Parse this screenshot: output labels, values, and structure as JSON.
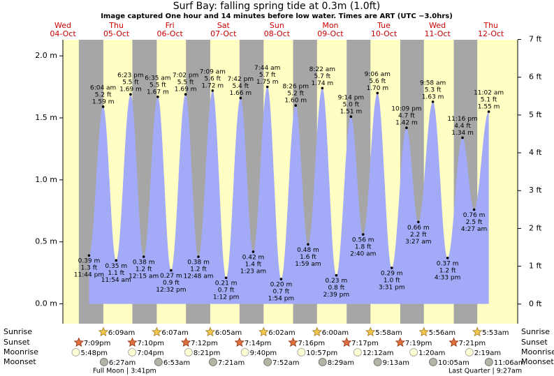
{
  "chart_data": {
    "type": "tide",
    "title": "Surf Bay: falling  spring tide at 0.3m (1.0ft)",
    "subtitle": "Image captured One hour and 14 minutes before low water. Times are ART (UTC −3.0hrs)",
    "ylim": [
      -0.16,
      2.13
    ],
    "yticks": [
      {
        "value": 0,
        "label": "0.0 m"
      },
      {
        "value": 0.5,
        "label": "0.5 m"
      },
      {
        "value": 1,
        "label": "1.0 m"
      },
      {
        "value": 1.5,
        "label": "1.5 m"
      },
      {
        "value": 2,
        "label": "2.0 m"
      }
    ],
    "y2lim": [
      -0.52,
      6.99
    ],
    "y2ticks": [
      {
        "value": 0,
        "label": "0 ft"
      },
      {
        "value": 1,
        "label": "1 ft"
      },
      {
        "value": 2,
        "label": "2 ft"
      },
      {
        "value": 3,
        "label": "3 ft"
      },
      {
        "value": 4,
        "label": "4 ft"
      },
      {
        "value": 5,
        "label": "5 ft"
      },
      {
        "value": 6,
        "label": "6 ft"
      },
      {
        "value": 7,
        "label": "7 ft"
      }
    ],
    "water_color": "#a3aaf7",
    "day_color": "#ffffc4",
    "night_color": "#a6a6a6",
    "row_labels": {
      "sunrise": "Sunrise",
      "sunset": "Sunset",
      "moonrise": "Moonrise",
      "moonset": "Moonset"
    },
    "days": [
      {
        "weekday": "Wed",
        "date": "04-Oct",
        "tides": [
          {
            "time": "11:44 pm",
            "height": 0.39,
            "height_label": "0.39 m",
            "feet": "1.3 ft"
          }
        ],
        "sunset": "7:09pm",
        "moonrise": "5:48pm"
      },
      {
        "weekday": "Thu",
        "date": "05-Oct",
        "tides": [
          {
            "time": "6:04 am",
            "height": 1.59,
            "height_label": "1.59 m",
            "feet": "5.2 ft"
          },
          {
            "time": "11:54 am",
            "height": 0.35,
            "height_label": "0.35 m",
            "feet": "1.1 ft"
          },
          {
            "time": "6:23 pm",
            "height": 1.69,
            "height_label": "1.69 m",
            "feet": "5.5 ft"
          }
        ],
        "sunrise": "6:09am",
        "sunset": "7:10pm",
        "moonrise": "7:04pm",
        "moonset": "6:27am",
        "moon_phase": "Full Moon | 3:41pm"
      },
      {
        "weekday": "Fri",
        "date": "06-Oct",
        "tides": [
          {
            "time": "12:15 am",
            "height": 0.38,
            "height_label": "0.38 m",
            "feet": "1.2 ft"
          },
          {
            "time": "6:35 am",
            "height": 1.67,
            "height_label": "1.67 m",
            "feet": "5.5 ft"
          },
          {
            "time": "12:32 pm",
            "height": 0.27,
            "height_label": "0.27 m",
            "feet": "0.9 ft"
          },
          {
            "time": "7:02 pm",
            "height": 1.69,
            "height_label": "1.69 m",
            "feet": "5.5 ft"
          }
        ],
        "sunrise": "6:07am",
        "sunset": "7:12pm",
        "moonrise": "8:21pm",
        "moonset": "6:53am"
      },
      {
        "weekday": "Sat",
        "date": "07-Oct",
        "tides": [
          {
            "time": "12:48 am",
            "height": 0.38,
            "height_label": "0.38 m",
            "feet": "1.2 ft"
          },
          {
            "time": "7:09 am",
            "height": 1.72,
            "height_label": "1.72 m",
            "feet": "5.6 ft"
          },
          {
            "time": "1:12 pm",
            "height": 0.21,
            "height_label": "0.21 m",
            "feet": "0.7 ft"
          },
          {
            "time": "7:42 pm",
            "height": 1.66,
            "height_label": "1.66 m",
            "feet": "5.4 ft"
          }
        ],
        "sunrise": "6:05am",
        "sunset": "7:14pm",
        "moonrise": "9:40pm",
        "moonset": "7:21am"
      },
      {
        "weekday": "Sun",
        "date": "08-Oct",
        "tides": [
          {
            "time": "1:23 am",
            "height": 0.42,
            "height_label": "0.42 m",
            "feet": "1.4 ft"
          },
          {
            "time": "7:44 am",
            "height": 1.75,
            "height_label": "1.75 m",
            "feet": "5.7 ft"
          },
          {
            "time": "1:54 pm",
            "height": 0.2,
            "height_label": "0.20 m",
            "feet": "0.7 ft"
          },
          {
            "time": "8:26 pm",
            "height": 1.6,
            "height_label": "1.60 m",
            "feet": "5.2 ft"
          }
        ],
        "sunrise": "6:02am",
        "sunset": "7:16pm",
        "moonrise": "10:57pm",
        "moonset": "7:52am"
      },
      {
        "weekday": "Mon",
        "date": "09-Oct",
        "tides": [
          {
            "time": "1:59 am",
            "height": 0.48,
            "height_label": "0.48 m",
            "feet": "1.6 ft"
          },
          {
            "time": "8:22 am",
            "height": 1.74,
            "height_label": "1.74 m",
            "feet": "5.7 ft"
          },
          {
            "time": "2:39 pm",
            "height": 0.23,
            "height_label": "0.23 m",
            "feet": "0.8 ft"
          },
          {
            "time": "9:14 pm",
            "height": 1.51,
            "height_label": "1.51 m",
            "feet": "5.0 ft"
          }
        ],
        "sunrise": "6:00am",
        "sunset": "7:17pm",
        "moonset": "8:29am"
      },
      {
        "weekday": "Tue",
        "date": "10-Oct",
        "tides": [
          {
            "time": "2:40 am",
            "height": 0.56,
            "height_label": "0.56 m",
            "feet": "1.8 ft"
          },
          {
            "time": "9:06 am",
            "height": 1.7,
            "height_label": "1.70 m",
            "feet": "5.6 ft"
          },
          {
            "time": "3:31 pm",
            "height": 0.29,
            "height_label": "0.29 m",
            "feet": "1.0 ft"
          },
          {
            "time": "10:09 pm",
            "height": 1.42,
            "height_label": "1.42 m",
            "feet": "4.7 ft"
          }
        ],
        "sunrise": "5:58am",
        "sunset": "7:19pm",
        "moonrise": "12:12am",
        "moonset": "9:13am"
      },
      {
        "weekday": "Wed",
        "date": "11-Oct",
        "tides": [
          {
            "time": "3:27 am",
            "height": 0.66,
            "height_label": "0.66 m",
            "feet": "2.2 ft"
          },
          {
            "time": "9:58 am",
            "height": 1.63,
            "height_label": "1.63 m",
            "feet": "5.3 ft"
          },
          {
            "time": "4:33 pm",
            "height": 0.37,
            "height_label": "0.37 m",
            "feet": "1.2 ft"
          },
          {
            "time": "11:16 pm",
            "height": 1.34,
            "height_label": "1.34 m",
            "feet": "4.4 ft"
          }
        ],
        "sunrise": "5:56am",
        "sunset": "7:21pm",
        "moonrise": "1:20am",
        "moonset": "10:05am"
      },
      {
        "weekday": "Thu",
        "date": "12-Oct",
        "tides": [
          {
            "time": "4:27 am",
            "height": 0.76,
            "height_label": "0.76 m",
            "feet": "2.5 ft"
          },
          {
            "time": "11:02 am",
            "height": 1.55,
            "height_label": "1.55 m",
            "feet": "5.1 ft"
          }
        ],
        "sunrise": "5:53am",
        "moonrise": "2:19am",
        "moonset": "11:06am",
        "moon_phase": "Last Quarter | 9:27am"
      }
    ]
  }
}
